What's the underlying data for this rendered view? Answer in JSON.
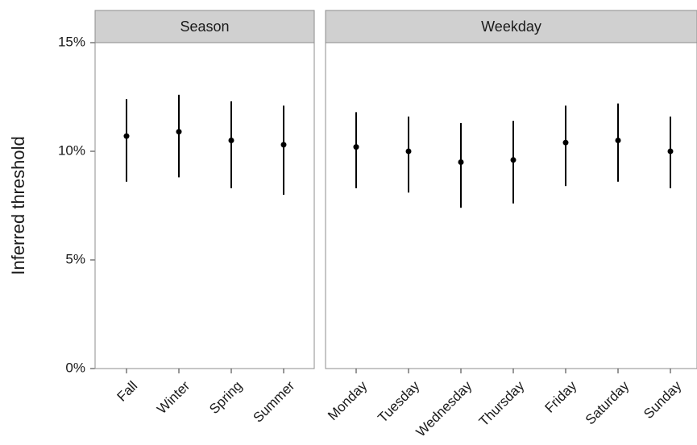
{
  "chart_data": {
    "type": "faceted-pointrange",
    "ylabel": "Inferred threshold",
    "y_unit": "%",
    "ylim": [
      0,
      15
    ],
    "y_ticks": [
      {
        "value": 0,
        "label": "0%"
      },
      {
        "value": 5,
        "label": "5%"
      },
      {
        "value": 10,
        "label": "10%"
      },
      {
        "value": 15,
        "label": "15%"
      }
    ],
    "grid": false,
    "legend": "none",
    "colors": {
      "point": "#000000",
      "strip_fill": "#d0d0d0",
      "panel_border": "#8c8c8c",
      "axis": "#333333"
    },
    "facets": [
      {
        "title": "Season",
        "categories": [
          "Fall",
          "Winter",
          "Spring",
          "Summer"
        ],
        "estimate": [
          10.7,
          10.9,
          10.5,
          10.3
        ],
        "lower": [
          8.6,
          8.8,
          8.3,
          8.0
        ],
        "upper": [
          12.4,
          12.6,
          12.3,
          12.1
        ]
      },
      {
        "title": "Weekday",
        "categories": [
          "Monday",
          "Tuesday",
          "Wednesday",
          "Thursday",
          "Friday",
          "Saturday",
          "Sunday"
        ],
        "estimate": [
          10.2,
          10.0,
          9.5,
          9.6,
          10.4,
          10.5,
          10.0
        ],
        "lower": [
          8.3,
          8.1,
          7.4,
          7.6,
          8.4,
          8.6,
          8.3
        ],
        "upper": [
          11.8,
          11.6,
          11.3,
          11.4,
          12.1,
          12.2,
          11.6
        ]
      }
    ]
  }
}
